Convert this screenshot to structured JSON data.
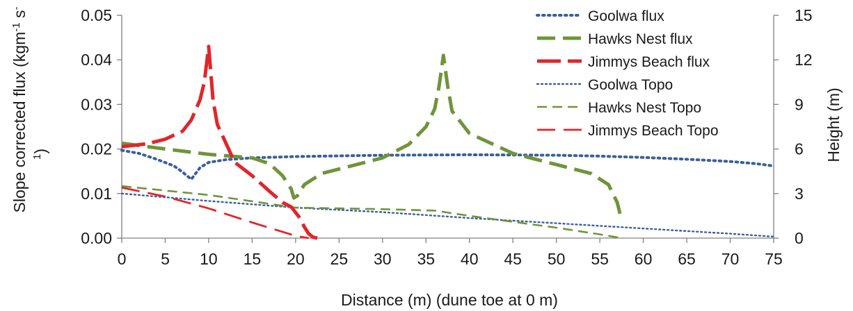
{
  "chart_data": {
    "type": "line",
    "xlabel": "Distance (m) (dune toe at 0 m)",
    "ylabel": "Slope corrected flux (kgm⁻¹ s⁻¹)",
    "ylabel_lines": [
      "Slope corrected flux (kgm",
      "-1",
      " s",
      "-",
      "1",
      ")"
    ],
    "y2label": "Height (m)",
    "xlim": [
      0,
      75
    ],
    "ylim": [
      0,
      0.05
    ],
    "y2lim": [
      0,
      15
    ],
    "x_ticks": [
      "0",
      "5",
      "10",
      "15",
      "20",
      "25",
      "30",
      "35",
      "40",
      "45",
      "50",
      "55",
      "60",
      "65",
      "70",
      "75"
    ],
    "y_ticks": [
      "0.00",
      "0.01",
      "0.02",
      "0.03",
      "0.04",
      "0.05"
    ],
    "y2_ticks": [
      "0",
      "3",
      "6",
      "9",
      "12",
      "15"
    ],
    "grid": false,
    "legend_position": "top-right",
    "series": [
      {
        "name": "Goolwa flux",
        "axis": "left",
        "color": "#3b5f9a",
        "style": "dotted-thick",
        "x": [
          0,
          2,
          4,
          6,
          7,
          8,
          8.5,
          9,
          10,
          12,
          15,
          20,
          30,
          40,
          50,
          55,
          60,
          65,
          70,
          73,
          75
        ],
        "y": [
          0.0197,
          0.019,
          0.0177,
          0.0162,
          0.0148,
          0.0132,
          0.0145,
          0.0158,
          0.017,
          0.0176,
          0.018,
          0.0183,
          0.0186,
          0.0187,
          0.0186,
          0.0184,
          0.0181,
          0.0177,
          0.0172,
          0.0167,
          0.0162
        ]
      },
      {
        "name": "Hawks Nest flux",
        "axis": "left",
        "color": "#70943a",
        "style": "long-dash-thick",
        "x": [
          0,
          5,
          10,
          15,
          17,
          18.5,
          19.5,
          19.8,
          20.2,
          21,
          23,
          26,
          30,
          33,
          35,
          36,
          36.5,
          37,
          37.5,
          38,
          40,
          45,
          50,
          54,
          56,
          57,
          57.5
        ],
        "y": [
          0.0213,
          0.02,
          0.0188,
          0.018,
          0.0167,
          0.014,
          0.011,
          0.009,
          0.0095,
          0.012,
          0.0145,
          0.016,
          0.018,
          0.021,
          0.025,
          0.029,
          0.034,
          0.041,
          0.034,
          0.0285,
          0.0235,
          0.019,
          0.0165,
          0.0145,
          0.012,
          0.008,
          0.004
        ]
      },
      {
        "name": "Jimmys Beach flux",
        "axis": "left",
        "color": "#e0262b",
        "style": "dash-thick",
        "x": [
          0,
          3,
          5,
          7,
          8,
          9,
          9.5,
          10,
          10.5,
          11,
          13,
          15,
          17,
          18.5,
          19.5,
          20.5,
          21,
          21.5,
          22,
          22.5
        ],
        "y": [
          0.0205,
          0.0212,
          0.0222,
          0.024,
          0.0265,
          0.031,
          0.035,
          0.043,
          0.031,
          0.0255,
          0.017,
          0.014,
          0.0105,
          0.008,
          0.007,
          0.0045,
          0.0025,
          0.001,
          0.0002,
          0.0
        ]
      },
      {
        "name": "Goolwa Topo",
        "axis": "right",
        "color": "#3b5f9a",
        "style": "dotted-thin",
        "x": [
          0,
          10,
          20,
          30,
          40,
          50,
          60,
          70,
          75
        ],
        "y": [
          3.0,
          2.5,
          2.05,
          1.75,
          1.35,
          1.0,
          0.65,
          0.3,
          0.1
        ]
      },
      {
        "name": "Hawks Nest Topo",
        "axis": "right",
        "color": "#70943a",
        "style": "dash-thin",
        "x": [
          0,
          10,
          20,
          30,
          36,
          40,
          45,
          50,
          55,
          57.5
        ],
        "y": [
          3.5,
          2.9,
          2.05,
          1.95,
          1.85,
          1.5,
          1.1,
          0.7,
          0.25,
          0.0
        ]
      },
      {
        "name": "Jimmys Beach Topo",
        "axis": "right",
        "color": "#e0262b",
        "style": "long-dash-thin",
        "x": [
          0,
          5,
          10,
          15,
          20,
          21.5
        ],
        "y": [
          3.4,
          2.8,
          2.0,
          1.05,
          0.15,
          0.0
        ]
      }
    ]
  }
}
